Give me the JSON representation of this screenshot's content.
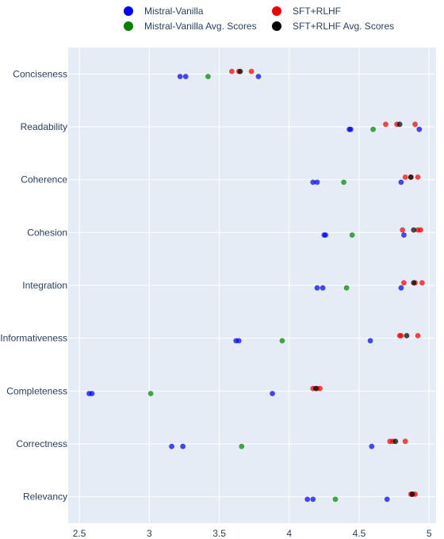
{
  "chart_data": {
    "type": "scatter",
    "orientation": "horizontal-categories",
    "categories": [
      "Conciseness",
      "Readability",
      "Coherence",
      "Cohesion",
      "Integration",
      "Informativeness",
      "Completeness",
      "Correctness",
      "Relevancy"
    ],
    "xlim": [
      2.42,
      5.05
    ],
    "x_ticks": [
      2.5,
      3,
      3.5,
      4,
      4.5,
      5
    ],
    "x_tick_labels": [
      "2.5",
      "3",
      "3.5",
      "4",
      "4.5",
      "5"
    ],
    "grid": true,
    "legend_position": "top",
    "colors": {
      "plot_background": "#e5ecf6",
      "grid": "#ffffff",
      "text": "#2a3f5f"
    },
    "series": [
      {
        "name": "Mistral-Vanilla",
        "color": "#0000ee",
        "offset": "lower",
        "points": [
          {
            "category": "Conciseness",
            "values": [
              3.22,
              3.26,
              3.78
            ]
          },
          {
            "category": "Readability",
            "values": [
              4.43,
              4.44,
              4.93
            ]
          },
          {
            "category": "Coherence",
            "values": [
              4.17,
              4.2,
              4.8
            ]
          },
          {
            "category": "Cohesion",
            "values": [
              4.25,
              4.26,
              4.82
            ]
          },
          {
            "category": "Integration",
            "values": [
              4.2,
              4.24,
              4.8
            ]
          },
          {
            "category": "Informativeness",
            "values": [
              3.62,
              3.64,
              4.58
            ]
          },
          {
            "category": "Completeness",
            "values": [
              2.57,
              2.59,
              3.88
            ]
          },
          {
            "category": "Correctness",
            "values": [
              3.16,
              3.24,
              4.59
            ]
          },
          {
            "category": "Relevancy",
            "values": [
              4.13,
              4.17,
              4.7
            ]
          }
        ]
      },
      {
        "name": "Mistral-Vanilla Avg. Scores",
        "color": "#008000",
        "offset": "lower",
        "points": [
          {
            "category": "Conciseness",
            "values": [
              3.42
            ]
          },
          {
            "category": "Readability",
            "values": [
              4.6
            ]
          },
          {
            "category": "Coherence",
            "values": [
              4.39
            ]
          },
          {
            "category": "Cohesion",
            "values": [
              4.45
            ]
          },
          {
            "category": "Integration",
            "values": [
              4.41
            ]
          },
          {
            "category": "Informativeness",
            "values": [
              3.95
            ]
          },
          {
            "category": "Completeness",
            "values": [
              3.01
            ]
          },
          {
            "category": "Correctness",
            "values": [
              3.66
            ]
          },
          {
            "category": "Relevancy",
            "values": [
              4.33
            ]
          }
        ]
      },
      {
        "name": "SFT+RLHF",
        "color": "#ee0000",
        "offset": "upper",
        "points": [
          {
            "category": "Conciseness",
            "values": [
              3.59,
              3.64,
              3.73
            ]
          },
          {
            "category": "Readability",
            "values": [
              4.69,
              4.77,
              4.9
            ]
          },
          {
            "category": "Coherence",
            "values": [
              4.83,
              4.87,
              4.92
            ]
          },
          {
            "category": "Cohesion",
            "values": [
              4.81,
              4.92,
              4.94
            ]
          },
          {
            "category": "Integration",
            "values": [
              4.82,
              4.9,
              4.95
            ]
          },
          {
            "category": "Informativeness",
            "values": [
              4.79,
              4.8,
              4.92
            ]
          },
          {
            "category": "Completeness",
            "values": [
              4.17,
              4.2,
              4.22
            ]
          },
          {
            "category": "Correctness",
            "values": [
              4.72,
              4.74,
              4.83
            ]
          },
          {
            "category": "Relevancy",
            "values": [
              4.87,
              4.88,
              4.9
            ]
          }
        ]
      },
      {
        "name": "SFT+RLHF Avg. Scores",
        "color": "#000000",
        "offset": "upper",
        "points": [
          {
            "category": "Conciseness",
            "values": [
              3.65
            ]
          },
          {
            "category": "Readability",
            "values": [
              4.79
            ]
          },
          {
            "category": "Coherence",
            "values": [
              4.87
            ]
          },
          {
            "category": "Cohesion",
            "values": [
              4.89
            ]
          },
          {
            "category": "Integration",
            "values": [
              4.89
            ]
          },
          {
            "category": "Informativeness",
            "values": [
              4.84
            ]
          },
          {
            "category": "Completeness",
            "values": [
              4.19
            ]
          },
          {
            "category": "Correctness",
            "values": [
              4.76
            ]
          },
          {
            "category": "Relevancy",
            "values": [
              4.88
            ]
          }
        ]
      }
    ]
  }
}
